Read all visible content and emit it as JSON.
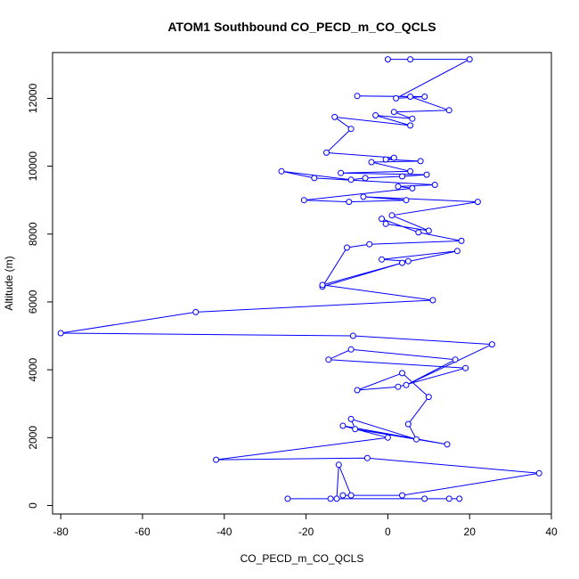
{
  "chart_data": {
    "type": "line",
    "title": "ATOM1 Southbound CO_PECD_m_CO_QCLS",
    "xlabel": "CO_PECD_m_CO_QCLS",
    "ylabel": "Altitude (m)",
    "xlim": [
      -82,
      40
    ],
    "ylim": [
      -250,
      13350
    ],
    "xticks": [
      -80,
      -60,
      -40,
      -20,
      0,
      20,
      40
    ],
    "yticks": [
      0,
      2000,
      4000,
      6000,
      8000,
      10000,
      12000
    ],
    "xtick_labels": [
      "-80",
      "-60",
      "-40",
      "-20",
      "0",
      "20",
      "40"
    ],
    "ytick_labels": [
      "0",
      "2000",
      "4000",
      "6000",
      "8000",
      "10000",
      "12000"
    ],
    "series_color": "#0000ff",
    "marker": "open-circle",
    "series": [
      {
        "x": [
          0,
          5.5,
          20,
          2,
          9,
          -7.5,
          5.5,
          15,
          1.5,
          6,
          -3,
          5.5,
          -13,
          -9,
          -15,
          1.5,
          -0.5,
          8,
          -4,
          5.5,
          -11.5,
          9.5,
          3.5,
          -5.5,
          -9,
          -26,
          -18,
          11.5,
          2.5,
          6,
          -20.5,
          -9.5,
          4.5,
          -6,
          22,
          1,
          10,
          -0.5,
          -1.5,
          7.5,
          18,
          -4.5,
          -10,
          -16,
          3.5,
          17,
          -1.5,
          5,
          -16,
          11,
          -47,
          -80,
          -8.5,
          25.5,
          4.5,
          16.5,
          -9,
          -14.5,
          19,
          2.5,
          -7.5,
          3.5,
          10,
          5,
          7,
          -9,
          -8,
          14.5,
          -11,
          0,
          -42,
          -5,
          37,
          3.5,
          -11,
          -9,
          -12,
          -12.5,
          9,
          15,
          -24.5,
          -14,
          17.5
        ],
        "y": [
          13150,
          13150,
          13150,
          12000,
          12050,
          12070,
          12050,
          11650,
          11600,
          11400,
          11500,
          11200,
          11450,
          11100,
          10400,
          10250,
          10200,
          10150,
          10120,
          9850,
          9800,
          9750,
          9700,
          9650,
          9600,
          9850,
          9650,
          9450,
          9400,
          9350,
          9000,
          8950,
          9000,
          9100,
          8950,
          8550,
          8100,
          8300,
          8450,
          8050,
          7800,
          7700,
          7600,
          6450,
          7150,
          7500,
          7250,
          7200,
          6500,
          6050,
          5700,
          5080,
          5000,
          4750,
          3550,
          4300,
          4600,
          4300,
          4050,
          3500,
          3400,
          3900,
          3200,
          2400,
          1950,
          2550,
          2250,
          1800,
          2350,
          2000,
          1350,
          1400,
          950,
          300,
          300,
          300,
          1200,
          200,
          200,
          200,
          200,
          200,
          200
        ]
      }
    ]
  }
}
